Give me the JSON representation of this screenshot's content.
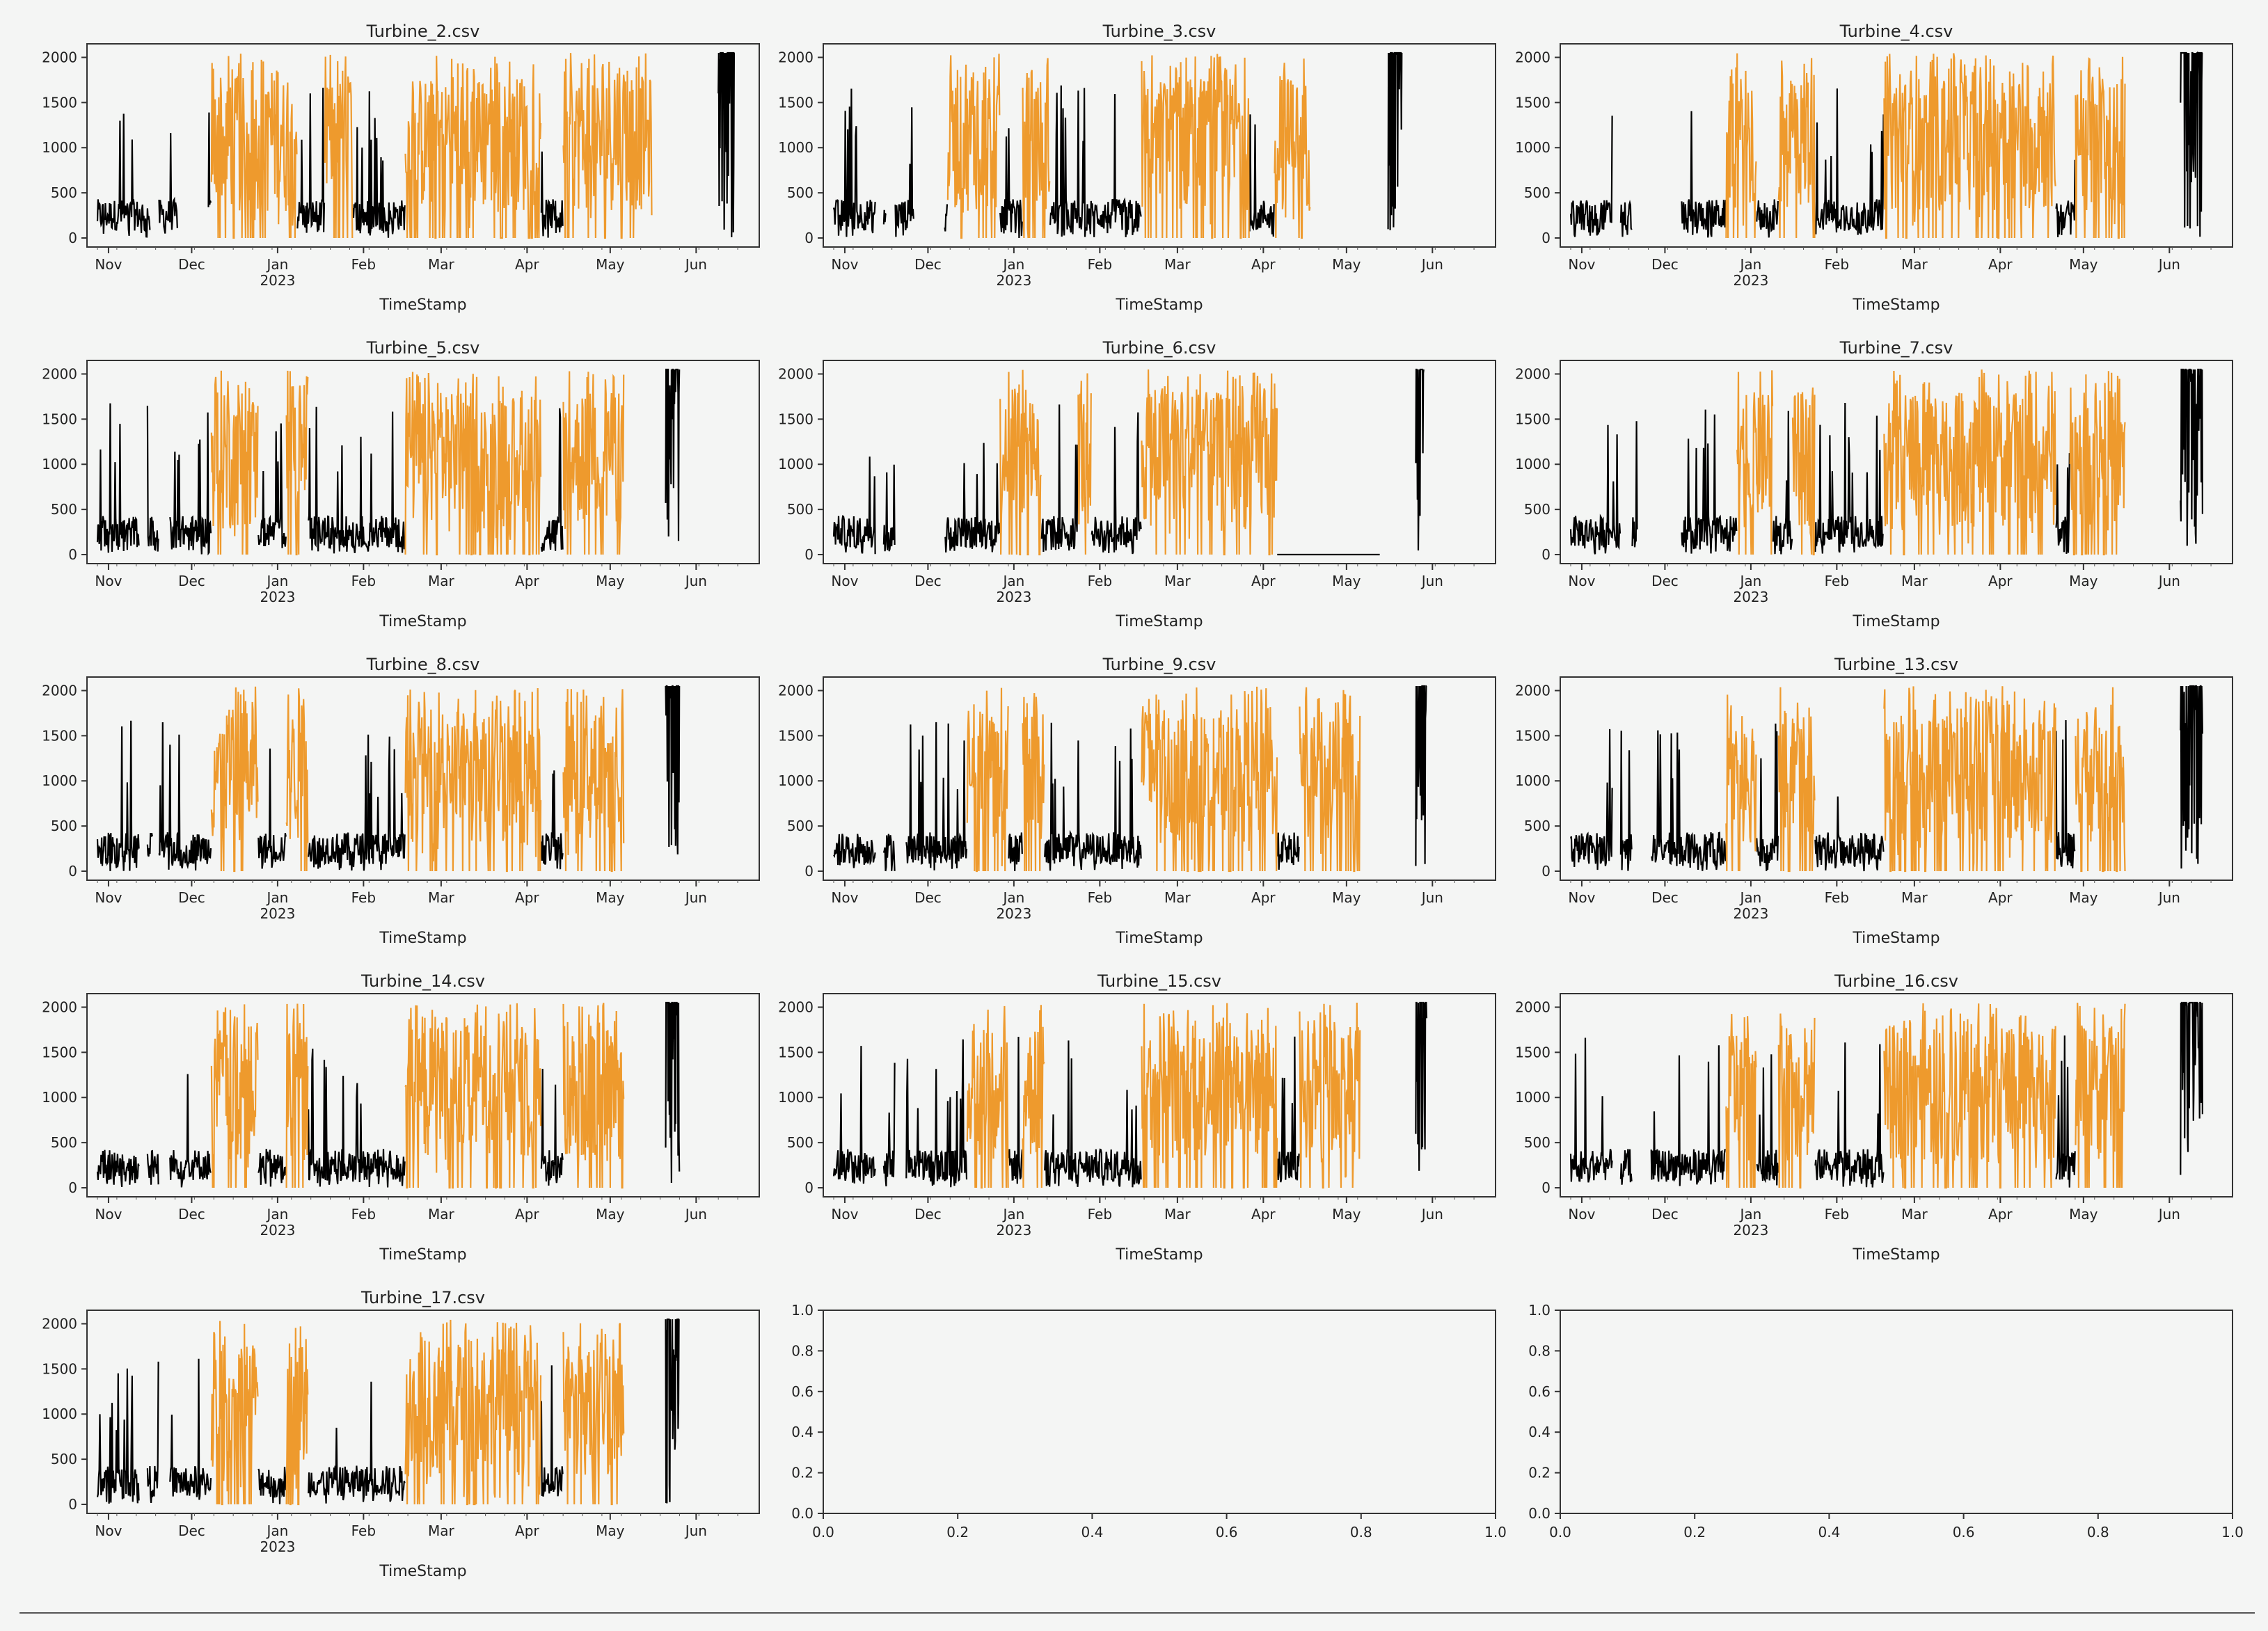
{
  "figure": {
    "background": "#f4f5f4",
    "line_color_inactive": "#000000",
    "line_color_active": "#ee9a2d",
    "xlabel": "TimeStamp",
    "x_ticks": [
      "Nov",
      "Dec",
      "Jan",
      "Feb",
      "Mar",
      "Apr",
      "May",
      "Jun"
    ],
    "year_label": "2023",
    "y_ticks": [
      "0",
      "500",
      "1000",
      "1500",
      "2000"
    ],
    "empty_ticks": [
      "0.0",
      "0.2",
      "0.4",
      "0.6",
      "0.8",
      "1.0"
    ]
  },
  "chart_data": [
    {
      "type": "line",
      "title": "Turbine_2.csv",
      "xlabel": "TimeStamp",
      "ylabel": "",
      "ylim": [
        -100,
        2150
      ],
      "x_range": [
        "2022-10-28",
        "2023-06-20"
      ],
      "gaps": [
        [
          19,
          22
        ],
        [
          29,
          40
        ],
        [
          224,
          231
        ]
      ],
      "orange": [
        [
          41,
          72
        ],
        [
          82,
          92
        ],
        [
          111,
          160
        ],
        [
          168,
          200
        ]
      ],
      "data_end": 200,
      "tail": [
        224,
        230
      ]
    },
    {
      "type": "line",
      "title": "Turbine_3.csv",
      "xlabel": "TimeStamp",
      "ylabel": "",
      "ylim": [
        -100,
        2150
      ],
      "x_range": [
        "2022-10-28",
        "2023-06-20"
      ],
      "gaps": [
        [
          15,
          18
        ],
        [
          19,
          22
        ],
        [
          29,
          40
        ]
      ],
      "orange": [
        [
          41,
          60
        ],
        [
          68,
          78
        ],
        [
          111,
          150
        ],
        [
          159,
          172
        ]
      ],
      "data_end": 172,
      "tail": [
        200,
        205
      ]
    },
    {
      "type": "line",
      "title": "Turbine_4.csv",
      "xlabel": "TimeStamp",
      "ylabel": "",
      "ylim": [
        -100,
        2150
      ],
      "x_range": [
        "2022-10-28",
        "2023-06-20"
      ],
      "gaps": [
        [
          15,
          18
        ],
        [
          22,
          29
        ],
        [
          29,
          40
        ]
      ],
      "orange": [
        [
          56,
          67
        ],
        [
          75,
          88
        ],
        [
          113,
          175
        ],
        [
          182,
          200
        ]
      ],
      "data_end": 200,
      "tail": [
        220,
        228
      ]
    },
    {
      "type": "line",
      "title": "Turbine_5.csv",
      "xlabel": "TimeStamp",
      "ylabel": "",
      "ylim": [
        -100,
        2150
      ],
      "x_range": [
        "2022-10-28",
        "2023-06-20"
      ],
      "gaps": [
        [
          15,
          18
        ],
        [
          22,
          26
        ]
      ],
      "orange": [
        [
          41,
          58
        ],
        [
          68,
          76
        ],
        [
          111,
          160
        ],
        [
          168,
          190
        ]
      ],
      "data_end": 190,
      "tail": [
        205,
        210
      ]
    },
    {
      "type": "line",
      "title": "Turbine_6.csv",
      "xlabel": "TimeStamp",
      "ylabel": "",
      "ylim": [
        -100,
        2150
      ],
      "x_range": [
        "2022-10-28",
        "2023-06-20"
      ],
      "gaps": [
        [
          15,
          18
        ],
        [
          22,
          26
        ],
        [
          26,
          40
        ]
      ],
      "orange": [
        [
          60,
          75
        ],
        [
          88,
          93
        ],
        [
          111,
          160
        ]
      ],
      "data_end": 160,
      "flat_after": [
        160,
        197
      ],
      "tail": [
        210,
        213
      ]
    },
    {
      "type": "line",
      "title": "Turbine_7.csv",
      "xlabel": "TimeStamp",
      "ylabel": "",
      "ylim": [
        -100,
        2150
      ],
      "x_range": [
        "2022-10-28",
        "2023-06-20"
      ],
      "gaps": [
        [
          18,
          22
        ],
        [
          24,
          40
        ]
      ],
      "orange": [
        [
          60,
          73
        ],
        [
          80,
          88
        ],
        [
          113,
          175
        ],
        [
          180,
          200
        ]
      ],
      "data_end": 200,
      "tail": [
        220,
        228
      ]
    },
    {
      "type": "line",
      "title": "Turbine_8.csv",
      "xlabel": "TimeStamp",
      "ylabel": "",
      "ylim": [
        -100,
        2150
      ],
      "x_range": [
        "2022-10-28",
        "2023-06-20"
      ],
      "gaps": [
        [
          15,
          18
        ],
        [
          20,
          22
        ]
      ],
      "orange": [
        [
          41,
          58
        ],
        [
          68,
          76
        ],
        [
          111,
          160
        ],
        [
          168,
          190
        ]
      ],
      "data_end": 190,
      "tail": [
        205,
        210
      ]
    },
    {
      "type": "line",
      "title": "Turbine_9.csv",
      "xlabel": "TimeStamp",
      "ylabel": "",
      "ylim": [
        -100,
        2150
      ],
      "x_range": [
        "2022-10-28",
        "2023-06-20"
      ],
      "gaps": [
        [
          15,
          18
        ],
        [
          22,
          26
        ]
      ],
      "orange": [
        [
          48,
          63
        ],
        [
          68,
          76
        ],
        [
          111,
          160
        ],
        [
          168,
          190
        ]
      ],
      "data_end": 190,
      "tail": [
        210,
        214
      ]
    },
    {
      "type": "line",
      "title": "Turbine_13.csv",
      "xlabel": "TimeStamp",
      "ylabel": "",
      "ylim": [
        -100,
        2150
      ],
      "x_range": [
        "2022-10-28",
        "2023-06-20"
      ],
      "gaps": [
        [
          15,
          18
        ],
        [
          22,
          29
        ]
      ],
      "orange": [
        [
          56,
          67
        ],
        [
          75,
          88
        ],
        [
          113,
          175
        ],
        [
          182,
          200
        ]
      ],
      "data_end": 200,
      "tail": [
        220,
        228
      ]
    },
    {
      "type": "line",
      "title": "Turbine_14.csv",
      "xlabel": "TimeStamp",
      "ylabel": "",
      "ylim": [
        -100,
        2150
      ],
      "x_range": [
        "2022-10-28",
        "2023-06-20"
      ],
      "gaps": [
        [
          15,
          18
        ],
        [
          22,
          26
        ]
      ],
      "orange": [
        [
          41,
          58
        ],
        [
          68,
          76
        ],
        [
          111,
          160
        ],
        [
          168,
          190
        ]
      ],
      "data_end": 190,
      "tail": [
        205,
        210
      ]
    },
    {
      "type": "line",
      "title": "Turbine_15.csv",
      "xlabel": "TimeStamp",
      "ylabel": "",
      "ylim": [
        -100,
        2150
      ],
      "x_range": [
        "2022-10-28",
        "2023-06-20"
      ],
      "gaps": [
        [
          15,
          18
        ],
        [
          22,
          26
        ]
      ],
      "orange": [
        [
          48,
          63
        ],
        [
          68,
          76
        ],
        [
          111,
          160
        ],
        [
          168,
          190
        ]
      ],
      "data_end": 190,
      "tail": [
        210,
        214
      ]
    },
    {
      "type": "line",
      "title": "Turbine_16.csv",
      "xlabel": "TimeStamp",
      "ylabel": "",
      "ylim": [
        -100,
        2150
      ],
      "x_range": [
        "2022-10-28",
        "2023-06-20"
      ],
      "gaps": [
        [
          15,
          18
        ],
        [
          22,
          29
        ]
      ],
      "orange": [
        [
          56,
          67
        ],
        [
          75,
          88
        ],
        [
          113,
          175
        ],
        [
          182,
          200
        ]
      ],
      "data_end": 200,
      "tail": [
        220,
        228
      ]
    },
    {
      "type": "line",
      "title": "Turbine_17.csv",
      "xlabel": "TimeStamp",
      "ylabel": "",
      "ylim": [
        -100,
        2150
      ],
      "x_range": [
        "2022-10-28",
        "2023-06-20"
      ],
      "gaps": [
        [
          15,
          18
        ],
        [
          22,
          26
        ]
      ],
      "orange": [
        [
          41,
          58
        ],
        [
          68,
          76
        ],
        [
          111,
          160
        ],
        [
          168,
          190
        ]
      ],
      "data_end": 190,
      "tail": [
        205,
        210
      ]
    },
    {
      "type": "line",
      "title": "",
      "empty": true,
      "xlim": [
        0,
        1
      ],
      "ylim": [
        0,
        1
      ]
    },
    {
      "type": "line",
      "title": "",
      "empty": true,
      "xlim": [
        0,
        1
      ],
      "ylim": [
        0,
        1
      ]
    }
  ]
}
